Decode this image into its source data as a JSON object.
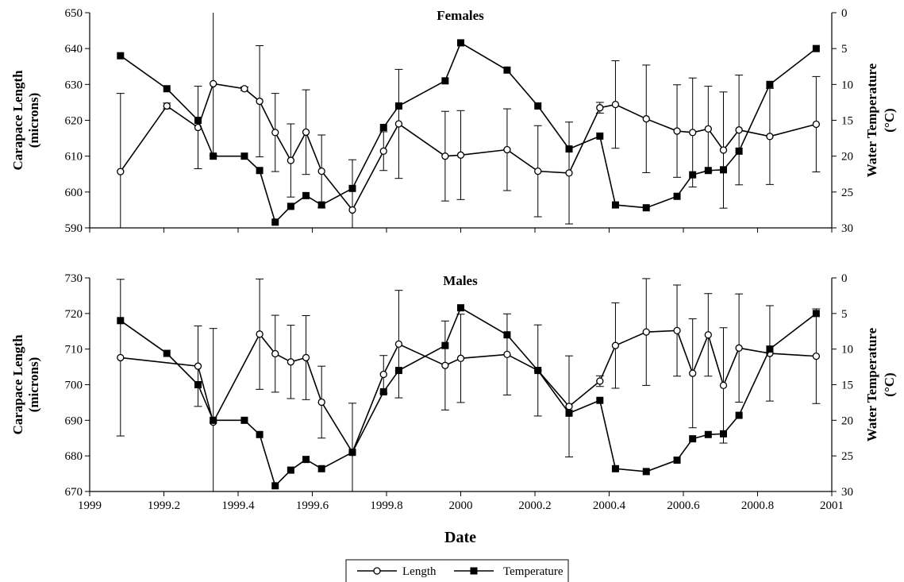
{
  "chart_data": [
    {
      "type": "line",
      "title": "Females",
      "xlabel": "",
      "ylabel": "Carapace Length (microns)",
      "ylabel_lines": [
        "Carapace Length",
        "(microns)"
      ],
      "y2label": "Water Temperature (°C)",
      "y2label_lines": [
        "Water Temperature",
        "(°C)"
      ],
      "xlim": [
        1999,
        2001
      ],
      "ylim": [
        590,
        650
      ],
      "y2lim": [
        0,
        30
      ],
      "y2_inverted": true,
      "yticks": [
        590,
        600,
        610,
        620,
        630,
        640,
        650
      ],
      "y2ticks": [
        0,
        5,
        10,
        15,
        20,
        25,
        30
      ],
      "xticks": [
        1999,
        1999.2,
        1999.4,
        1999.6,
        1999.8,
        2000,
        2000.2,
        2000.4,
        2000.6,
        2000.8,
        2001
      ],
      "grid": false,
      "series": [
        {
          "name": "Length",
          "axis": "left",
          "marker": "open-circle",
          "x": [
            1999.083,
            1999.208,
            1999.292,
            1999.333,
            1999.417,
            1999.458,
            1999.5,
            1999.542,
            1999.583,
            1999.625,
            1999.708,
            1999.792,
            1999.833,
            1999.958,
            2000.0,
            2000.125,
            2000.208,
            2000.292,
            2000.375,
            2000.417,
            2000.5,
            2000.583,
            2000.625,
            2000.667,
            2000.708,
            2000.75,
            2000.833,
            2000.958
          ],
          "values": [
            605.7,
            624,
            618,
            630.2,
            628.8,
            625.3,
            616.6,
            608.8,
            616.7,
            605.8,
            595,
            611.4,
            619,
            610,
            610.3,
            611.8,
            605.8,
            605.3,
            623.5,
            624.4,
            620.4,
            617,
            616.6,
            617.6,
            611.7,
            617.3,
            615.5,
            618.9
          ],
          "errors": [
            21.8,
            0.8,
            11.5,
            20,
            0.5,
            15.5,
            10.9,
            10.2,
            11.8,
            10.1,
            14,
            5.4,
            15.2,
            12.5,
            12.4,
            11.4,
            12.7,
            14.2,
            1.5,
            12.2,
            15,
            12.9,
            15.2,
            11.9,
            16.2,
            15.3,
            13.4,
            13.3
          ]
        },
        {
          "name": "Temperature",
          "axis": "right",
          "marker": "filled-square",
          "x": [
            1999.083,
            1999.208,
            1999.292,
            1999.333,
            1999.417,
            1999.458,
            1999.5,
            1999.542,
            1999.583,
            1999.625,
            1999.708,
            1999.792,
            1999.833,
            1999.958,
            2000.0,
            2000.125,
            2000.208,
            2000.292,
            2000.375,
            2000.417,
            2000.5,
            2000.583,
            2000.625,
            2000.667,
            2000.708,
            2000.75,
            2000.833,
            2000.958
          ],
          "values": [
            6,
            10.6,
            15,
            20,
            20,
            22,
            29.2,
            27,
            25.5,
            26.8,
            24.5,
            16,
            13,
            9.5,
            4.2,
            8,
            13,
            19,
            17.2,
            26.8,
            27.2,
            25.6,
            22.6,
            22,
            21.9,
            19.3,
            10,
            5
          ]
        }
      ]
    },
    {
      "type": "line",
      "title": "Males",
      "xlabel": "Date",
      "ylabel": "Carapace Length (microns)",
      "ylabel_lines": [
        "Carapace Length",
        "(microns)"
      ],
      "y2label": "Water Temperature (°C)",
      "y2label_lines": [
        "Water Temperature",
        "(°C)"
      ],
      "xlim": [
        1999,
        2001
      ],
      "ylim": [
        670,
        730
      ],
      "y2lim": [
        0,
        30
      ],
      "y2_inverted": true,
      "yticks": [
        670,
        680,
        690,
        700,
        710,
        720,
        730
      ],
      "y2ticks": [
        0,
        5,
        10,
        15,
        20,
        25,
        30
      ],
      "xticks": [
        1999,
        1999.2,
        1999.4,
        1999.6,
        1999.8,
        2000,
        2000.2,
        2000.4,
        2000.6,
        2000.8,
        2001
      ],
      "grid": false,
      "series": [
        {
          "name": "Length",
          "axis": "left",
          "marker": "open-circle",
          "x": [
            1999.083,
            1999.292,
            1999.333,
            1999.458,
            1999.5,
            1999.542,
            1999.583,
            1999.625,
            1999.708,
            1999.792,
            1999.833,
            1999.958,
            2000.0,
            2000.125,
            2000.208,
            2000.292,
            2000.375,
            2000.417,
            2000.5,
            2000.583,
            2000.625,
            2000.667,
            2000.708,
            2000.75,
            2000.833,
            2000.958
          ],
          "values": [
            707.6,
            705.2,
            689.5,
            714.2,
            708.7,
            706.4,
            707.6,
            695.1,
            681,
            702.9,
            711.4,
            705.4,
            707.4,
            708.5,
            704,
            693.9,
            701,
            711,
            714.8,
            715.2,
            703.2,
            714,
            699.8,
            710.3,
            708.8,
            708
          ],
          "errors": [
            22,
            11.3,
            26.3,
            15.5,
            10.8,
            10.3,
            11.8,
            10.1,
            13.8,
            5.3,
            15.1,
            12.5,
            12.4,
            11.4,
            12.8,
            14.2,
            1.5,
            12,
            15,
            12.8,
            15.3,
            11.6,
            16.2,
            15.2,
            13.4,
            13.3
          ]
        },
        {
          "name": "Temperature",
          "axis": "right",
          "marker": "filled-square",
          "x": [
            1999.083,
            1999.208,
            1999.292,
            1999.333,
            1999.417,
            1999.458,
            1999.5,
            1999.542,
            1999.583,
            1999.625,
            1999.708,
            1999.792,
            1999.833,
            1999.958,
            2000.0,
            2000.125,
            2000.208,
            2000.292,
            2000.375,
            2000.417,
            2000.5,
            2000.583,
            2000.625,
            2000.667,
            2000.708,
            2000.75,
            2000.833,
            2000.958
          ],
          "values": [
            6,
            10.6,
            15,
            20,
            20,
            22,
            29.2,
            27,
            25.5,
            26.8,
            24.5,
            16,
            13,
            9.5,
            4.2,
            8,
            13,
            19,
            17.2,
            26.8,
            27.2,
            25.6,
            22.6,
            22,
            21.9,
            19.3,
            10,
            5
          ]
        }
      ]
    }
  ],
  "legend": {
    "position": "bottom-center",
    "items": [
      {
        "label": "Length",
        "marker": "open-circle"
      },
      {
        "label": "Temperature",
        "marker": "filled-square"
      }
    ]
  }
}
